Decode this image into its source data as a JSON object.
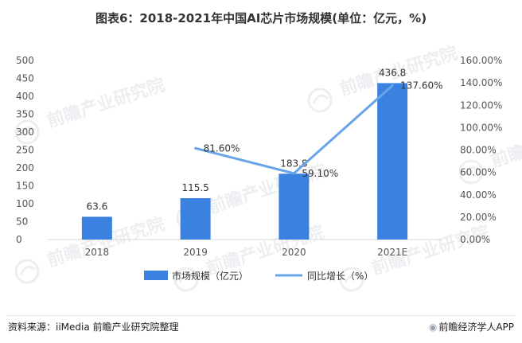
{
  "title": "图表6：2018-2021年中国AI芯片市场规模(单位：亿元，%)",
  "footer": {
    "source": "资料来源：iiMedia 前瞻产业研究院整理",
    "brand": "前瞻经济学人APP",
    "brand_icon": "swirl-logo-icon"
  },
  "watermark": "前瞻产业研究院",
  "colors": {
    "bar": "#3b82e0",
    "line": "#6aa4e8",
    "axis_text": "#555555",
    "gridline": "#d9d9d9"
  },
  "chart_data": {
    "type": "bar",
    "categories": [
      "2018",
      "2019",
      "2020",
      "2021E"
    ],
    "series": [
      {
        "name": "市场规模（亿元）",
        "type": "bar",
        "axis": "left",
        "values": [
          63.6,
          115.5,
          183.8,
          436.8
        ],
        "labels": [
          "63.6",
          "115.5",
          "183.8",
          "436.8"
        ]
      },
      {
        "name": "同比增长（%）",
        "type": "line",
        "axis": "right",
        "values": [
          null,
          81.6,
          59.1,
          137.6
        ],
        "labels": [
          "",
          "81.60%",
          "59.10%",
          "137.60%"
        ]
      }
    ],
    "y_left": {
      "min": 0,
      "max": 500,
      "step": 50,
      "ticks": [
        "0",
        "50",
        "100",
        "150",
        "200",
        "250",
        "300",
        "350",
        "400",
        "450",
        "500"
      ]
    },
    "y_right": {
      "min": 0,
      "max": 160,
      "step": 20,
      "ticks": [
        "0.00%",
        "20.00%",
        "40.00%",
        "60.00%",
        "80.00%",
        "100.00%",
        "120.00%",
        "140.00%",
        "160.00%"
      ]
    },
    "grid": false,
    "legend_position": "bottom-center"
  }
}
